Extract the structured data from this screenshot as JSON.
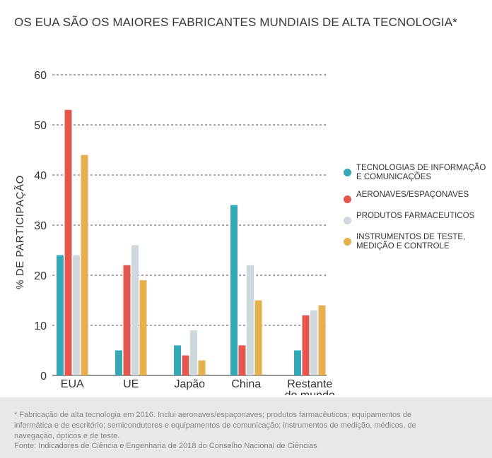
{
  "title": "OS EUA SÃO OS MAIORES FABRICANTES MUNDIAIS DE ALTA TECNOLOGIA*",
  "footnote": "* Fabricação de alta tecnologia em 2016. Inclui aeronaves/espaçonaves; produtos farmacêuticos; equipamentos de informática e de escritório; semicondutores e equipamentos de comunicação; instrumentos de medição, médicos, de navegação, ópticos e de teste.",
  "source": "Fonte: Indicadores de Ciência e Engenharia de 2018 do Conselho Nacional de Ciências",
  "chart_data": {
    "type": "bar",
    "title": "OS EUA SÃO OS MAIORES FABRICANTES MUNDIAIS DE ALTA TECNOLOGIA*",
    "xlabel": "",
    "ylabel": "% DE PARTICIPAÇÃO",
    "ylim": [
      0,
      60
    ],
    "yticks": [
      0,
      10,
      20,
      30,
      40,
      50,
      60
    ],
    "grid": "horizontal dashed",
    "legend_position": "right",
    "categories": [
      "EUA",
      "UE",
      "Japão",
      "China",
      "Restante do mundo"
    ],
    "category_labels": [
      [
        "EUA"
      ],
      [
        "UE"
      ],
      [
        "Japão"
      ],
      [
        "China"
      ],
      [
        "Restante",
        "do mundo"
      ]
    ],
    "series": [
      {
        "name": "TECNOLOGIAS DE INFORMAÇÃO E COMUNICAÇÕES",
        "legend_lines": [
          "TECNOLOGIAS DE INFORMAÇÃO",
          "E COMUNICAÇÕES"
        ],
        "color": "#35a9b8",
        "values": [
          24,
          5,
          6,
          34,
          5
        ]
      },
      {
        "name": "AERONAVES/ESPAÇONAVES",
        "legend_lines": [
          "AERONAVES/ESPAÇONAVES"
        ],
        "color": "#e5584f",
        "values": [
          53,
          22,
          4,
          6,
          12
        ]
      },
      {
        "name": "PRODUTOS FARMACEUTICOS",
        "legend_lines": [
          "PRODUTOS FARMACEUTICOS"
        ],
        "color": "#cfd8dd",
        "values": [
          24,
          26,
          9,
          22,
          13
        ]
      },
      {
        "name": "INSTRUMENTOS DE TESTE, MEDIÇÃO E CONTROLE",
        "legend_lines": [
          "INSTRUMENTOS DE TESTE,",
          "MEDIÇÃO E CONTROLE"
        ],
        "color": "#e6b04f",
        "values": [
          44,
          19,
          3,
          15,
          14
        ]
      }
    ]
  }
}
